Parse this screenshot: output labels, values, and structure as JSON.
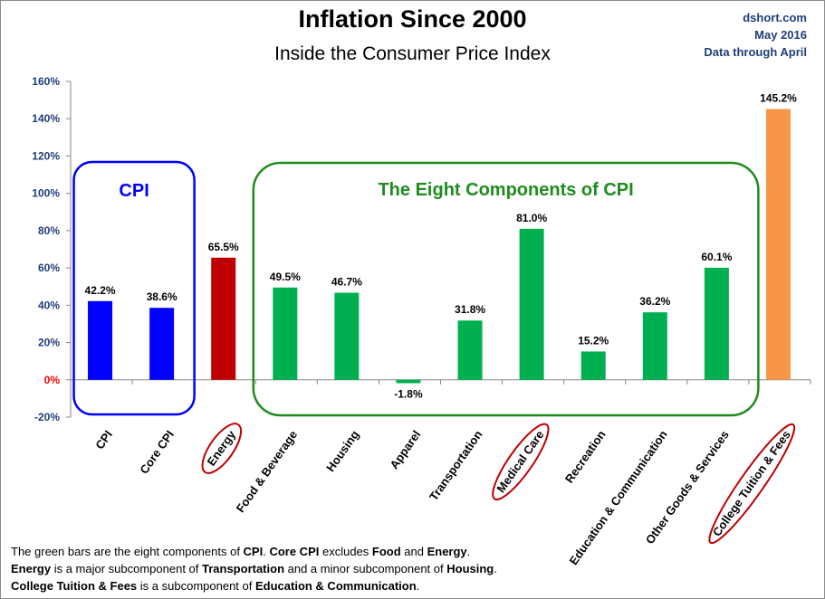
{
  "header": {
    "title": "Inflation Since 2000",
    "subtitle": "Inside the Consumer Price Index",
    "source_lines": [
      "dshort.com",
      "May 2016",
      "Data through April"
    ]
  },
  "annotations": {
    "cpi_group": "CPI",
    "components_group": "The Eight Components of CPI"
  },
  "footnote": {
    "lines": [
      [
        {
          "t": "The green bars are the eight components of ",
          "b": false
        },
        {
          "t": "CPI",
          "b": true
        },
        {
          "t": ". ",
          "b": false
        },
        {
          "t": "Core CPI",
          "b": true
        },
        {
          "t": " excludes ",
          "b": false
        },
        {
          "t": "Food",
          "b": true
        },
        {
          "t": " and ",
          "b": false
        },
        {
          "t": "Energy",
          "b": true
        },
        {
          "t": ".",
          "b": false
        }
      ],
      [
        {
          "t": "Energy",
          "b": true
        },
        {
          "t": " is a  major subcomponent of ",
          "b": false
        },
        {
          "t": "Transportation",
          "b": true
        },
        {
          "t": " and a minor subcomponent of ",
          "b": false
        },
        {
          "t": "Housing",
          "b": true
        },
        {
          "t": ".",
          "b": false
        }
      ],
      [
        {
          "t": "College Tuition & Fees",
          "b": true
        },
        {
          "t": " is a subcomponent of ",
          "b": false
        },
        {
          "t": "Education & Communication",
          "b": true
        },
        {
          "t": ".",
          "b": false
        }
      ]
    ]
  },
  "colors": {
    "cpi": "#0000ff",
    "energy": "#c00000",
    "component": "#00b050",
    "tuition": "#f79646",
    "cpi_box": "#0000ff",
    "components_box": "#1e8c1e",
    "highlight_ellipse": "#c00000",
    "axis_label": "#1f3e7a",
    "zero_label": "#ff0000"
  },
  "chart_data": {
    "type": "bar",
    "title": "Inflation Since 2000",
    "subtitle": "Inside the Consumer Price Index",
    "categories": [
      "CPI",
      "Core CPI",
      "Energy",
      "Food & Beverage",
      "Housing",
      "Apparel",
      "Transportation",
      "Medical Care",
      "Recreation",
      "Education & Communication",
      "Other Goods & Services",
      "College Tuition & Fees"
    ],
    "values": [
      42.2,
      38.6,
      65.5,
      49.5,
      46.7,
      -1.8,
      31.8,
      81.0,
      15.2,
      36.2,
      60.1,
      145.2
    ],
    "value_labels": [
      "42.2%",
      "38.6%",
      "65.5%",
      "49.5%",
      "46.7%",
      "-1.8%",
      "31.8%",
      "81.0%",
      "15.2%",
      "36.2%",
      "60.1%",
      "145.2%"
    ],
    "bar_color_keys": [
      "cpi",
      "cpi",
      "energy",
      "component",
      "component",
      "component",
      "component",
      "component",
      "component",
      "component",
      "component",
      "tuition"
    ],
    "highlighted_categories": [
      "Energy",
      "Medical Care",
      "College Tuition & Fees"
    ],
    "y_ticks": [
      160,
      140,
      120,
      100,
      80,
      60,
      40,
      20,
      0,
      -20
    ],
    "y_tick_labels": [
      "160%",
      "140%",
      "120%",
      "100%",
      "80%",
      "60%",
      "40%",
      "20%",
      "0%",
      "-20%"
    ],
    "ylim": [
      -20,
      160
    ],
    "grid": false,
    "xlabel": "",
    "ylabel": ""
  }
}
